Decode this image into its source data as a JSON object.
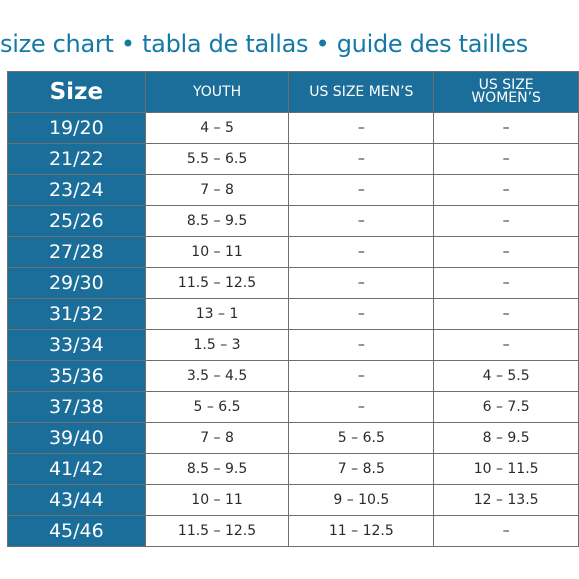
{
  "title": "size chart • tabla de tallas • guide des tailles",
  "headers": {
    "size": "Size",
    "youth": "YOUTH",
    "mens": "US SIZE MEN’S",
    "womens_line1": "US SIZE",
    "womens_line2": "WOMEN’S"
  },
  "rows": [
    {
      "size": "19/20",
      "youth": "4 – 5",
      "mens": "–",
      "womens": "–"
    },
    {
      "size": "21/22",
      "youth": "5.5 – 6.5",
      "mens": "–",
      "womens": "–"
    },
    {
      "size": "23/24",
      "youth": "7 – 8",
      "mens": "–",
      "womens": "–"
    },
    {
      "size": "25/26",
      "youth": "8.5 – 9.5",
      "mens": "–",
      "womens": "–"
    },
    {
      "size": "27/28",
      "youth": "10 – 11",
      "mens": "–",
      "womens": "–"
    },
    {
      "size": "29/30",
      "youth": "11.5 – 12.5",
      "mens": "–",
      "womens": "–"
    },
    {
      "size": "31/32",
      "youth": "13 – 1",
      "mens": "–",
      "womens": "–"
    },
    {
      "size": "33/34",
      "youth": "1.5 – 3",
      "mens": "–",
      "womens": "–"
    },
    {
      "size": "35/36",
      "youth": "3.5 – 4.5",
      "mens": "–",
      "womens": "4 – 5.5"
    },
    {
      "size": "37/38",
      "youth": "5 – 6.5",
      "mens": "–",
      "womens": "6 – 7.5"
    },
    {
      "size": "39/40",
      "youth": "7 – 8",
      "mens": "5 – 6.5",
      "womens": "8 – 9.5"
    },
    {
      "size": "41/42",
      "youth": "8.5 – 9.5",
      "mens": "7 – 8.5",
      "womens": "10 – 11.5"
    },
    {
      "size": "43/44",
      "youth": "10 – 11",
      "mens": "9 – 10.5",
      "womens": "12 – 13.5"
    },
    {
      "size": "45/46",
      "youth": "11.5 – 12.5",
      "mens": "11 – 12.5",
      "womens": "–"
    }
  ],
  "colors": {
    "header_bg": "#1b6e99",
    "title_text": "#1479a6",
    "cell_text": "#2b2b2b",
    "border": "#6e6e6e"
  }
}
